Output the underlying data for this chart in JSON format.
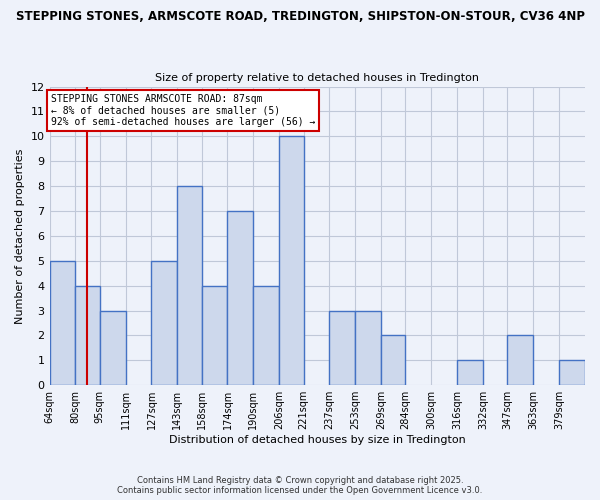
{
  "title1": "STEPPING STONES, ARMSCOTE ROAD, TREDINGTON, SHIPSTON-ON-STOUR, CV36 4NP",
  "title2": "Size of property relative to detached houses in Tredington",
  "xlabel": "Distribution of detached houses by size in Tredington",
  "ylabel": "Number of detached properties",
  "bin_labels": [
    "64sqm",
    "80sqm",
    "95sqm",
    "111sqm",
    "127sqm",
    "143sqm",
    "158sqm",
    "174sqm",
    "190sqm",
    "206sqm",
    "221sqm",
    "237sqm",
    "253sqm",
    "269sqm",
    "284sqm",
    "300sqm",
    "316sqm",
    "332sqm",
    "347sqm",
    "363sqm",
    "379sqm"
  ],
  "bin_edges": [
    64,
    80,
    95,
    111,
    127,
    143,
    158,
    174,
    190,
    206,
    221,
    237,
    253,
    269,
    284,
    300,
    316,
    332,
    347,
    363,
    379
  ],
  "counts": [
    5,
    4,
    3,
    0,
    5,
    8,
    4,
    7,
    4,
    10,
    0,
    3,
    3,
    2,
    0,
    0,
    1,
    0,
    2,
    0,
    1
  ],
  "bar_facecolor": "#cdd8ec",
  "bar_edgecolor": "#4472c4",
  "bar_linewidth": 1.0,
  "vline_x": 87,
  "vline_color": "#cc0000",
  "vline_linewidth": 1.5,
  "annotation_title": "STEPPING STONES ARMSCOTE ROAD: 87sqm",
  "annotation_line2": "← 8% of detached houses are smaller (5)",
  "annotation_line3": "92% of semi-detached houses are larger (56) →",
  "annotation_box_edgecolor": "#cc0000",
  "ylim": [
    0,
    12
  ],
  "yticks": [
    0,
    1,
    2,
    3,
    4,
    5,
    6,
    7,
    8,
    9,
    10,
    11,
    12
  ],
  "grid_color": "#c0c8d8",
  "bg_color": "#eef2fa",
  "fig_color": "#eef2fa",
  "footer1": "Contains HM Land Registry data © Crown copyright and database right 2025.",
  "footer2": "Contains public sector information licensed under the Open Government Licence v3.0."
}
